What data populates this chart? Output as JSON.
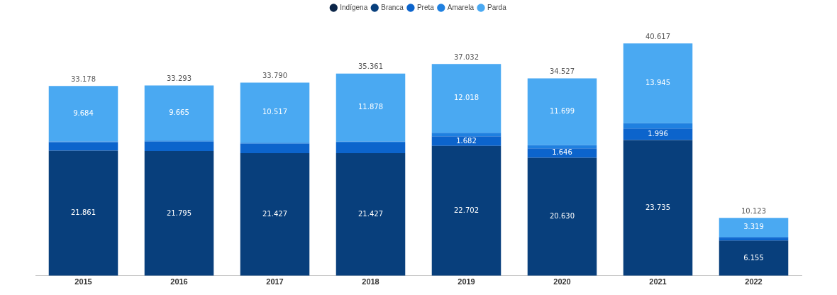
{
  "chart_data": {
    "type": "bar",
    "stacked": true,
    "legend": "top",
    "grid": false,
    "tick_labels": "x",
    "categories": [
      "2015",
      "2016",
      "2017",
      "2018",
      "2019",
      "2020",
      "2021",
      "2022"
    ],
    "series": [
      {
        "name": "Indígena",
        "color": "#0b2548",
        "values": [
          null,
          null,
          null,
          null,
          null,
          null,
          null,
          null
        ],
        "value_labels": [
          null,
          null,
          null,
          null,
          null,
          null,
          null,
          null
        ]
      },
      {
        "name": "Branca",
        "color": "#083f7c",
        "values": [
          21861,
          21795,
          21427,
          21427,
          22702,
          20630,
          23735,
          6155
        ],
        "value_labels": [
          "21.861",
          "21.795",
          "21.427",
          "21.427",
          "22.702",
          "20.630",
          "23.735",
          "6.155"
        ]
      },
      {
        "name": "Preta",
        "color": "#0c64cc",
        "values": [
          1450,
          1650,
          1660,
          1870,
          1682,
          1646,
          1996,
          500
        ],
        "value_labels": [
          null,
          null,
          null,
          null,
          "1.682",
          "1.646",
          "1.996",
          null
        ]
      },
      {
        "name": "Amarela",
        "color": "#1f80e0",
        "values": [
          183,
          183,
          186,
          186,
          630,
          552,
          941,
          149
        ],
        "value_labels": [
          null,
          null,
          null,
          null,
          null,
          null,
          null,
          null
        ]
      },
      {
        "name": "Parda",
        "color": "#4aa9f2",
        "values": [
          9684,
          9665,
          10517,
          11878,
          12018,
          11699,
          13945,
          3319
        ],
        "value_labels": [
          "9.684",
          "9.665",
          "10.517",
          "11.878",
          "12.018",
          "11.699",
          "13.945",
          "3.319"
        ]
      }
    ],
    "totals": [
      "33.178",
      "33.293",
      "33.790",
      "35.361",
      "37.032",
      "34.527",
      "40.617",
      "10.123"
    ]
  }
}
